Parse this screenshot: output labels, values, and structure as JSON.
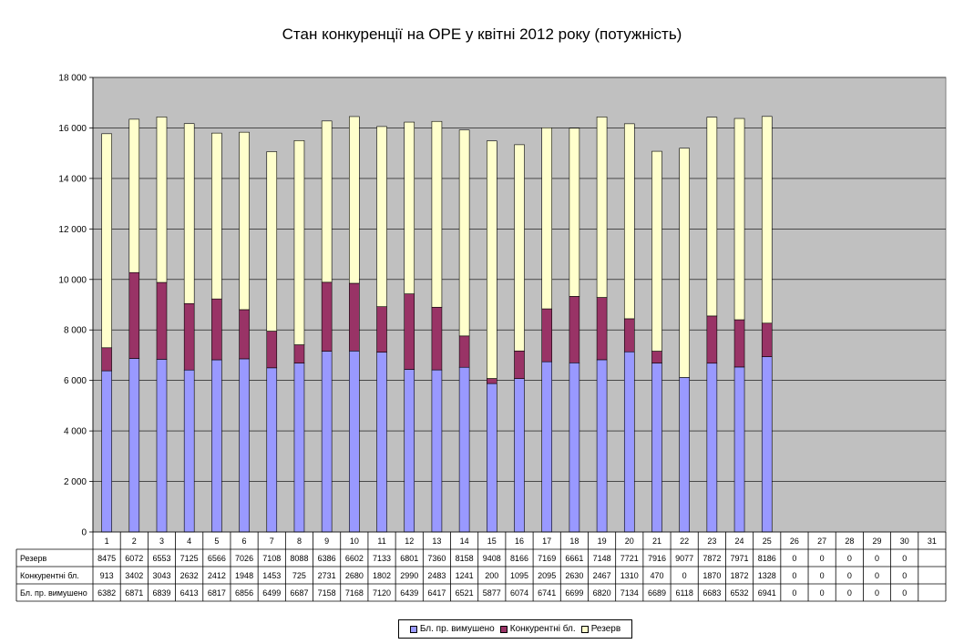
{
  "chart_data": {
    "type": "bar",
    "stacked": true,
    "title": "Стан конкуренції на ОРЕ  у квітні 2012 року (потужність)",
    "categories": [
      "1",
      "2",
      "3",
      "4",
      "5",
      "6",
      "7",
      "8",
      "9",
      "10",
      "11",
      "12",
      "13",
      "14",
      "15",
      "16",
      "17",
      "18",
      "19",
      "20",
      "21",
      "22",
      "23",
      "24",
      "25",
      "26",
      "27",
      "28",
      "29",
      "30",
      "31"
    ],
    "ylim": [
      0,
      18000
    ],
    "yticks": [
      "0",
      "2 000",
      "4 000",
      "6 000",
      "8 000",
      "10 000",
      "12 000",
      "14 000",
      "16 000",
      "18 000"
    ],
    "ytick_values": [
      0,
      2000,
      4000,
      6000,
      8000,
      10000,
      12000,
      14000,
      16000,
      18000
    ],
    "grid": true,
    "legend_position": "bottom",
    "series": [
      {
        "name": "Бл. пр. вимушено",
        "color": "#9999ff",
        "values": [
          6382,
          6871,
          6839,
          6413,
          6817,
          6856,
          6499,
          6687,
          7158,
          7168,
          7120,
          6439,
          6417,
          6521,
          5877,
          6074,
          6741,
          6699,
          6820,
          7134,
          6689,
          6118,
          6683,
          6532,
          6941,
          0,
          0,
          0,
          0,
          0,
          null
        ]
      },
      {
        "name": "Конкурентні бл.",
        "color": "#993366",
        "values": [
          913,
          3402,
          3043,
          2632,
          2412,
          1948,
          1453,
          725,
          2731,
          2680,
          1802,
          2990,
          2483,
          1241,
          200,
          1095,
          2095,
          2630,
          2467,
          1310,
          470,
          0,
          1870,
          1872,
          1328,
          0,
          0,
          0,
          0,
          0,
          null
        ]
      },
      {
        "name": "Резерв",
        "color": "#ffffcc",
        "values": [
          8475,
          6072,
          6553,
          7125,
          6566,
          7026,
          7108,
          8088,
          6386,
          6602,
          7133,
          6801,
          7360,
          8158,
          9408,
          8166,
          7169,
          6661,
          7148,
          7721,
          7916,
          9077,
          7872,
          7971,
          8186,
          0,
          0,
          0,
          0,
          0,
          null
        ]
      }
    ],
    "table_rows": [
      {
        "label": "Резерв",
        "series": 2
      },
      {
        "label": "Конкурентні бл.",
        "series": 1
      },
      {
        "label": "Бл. пр. вимушено",
        "series": 0
      }
    ]
  },
  "colors": {
    "plot_background": "#c0c0c0",
    "page_background": "#ffffff",
    "gridline": "#000000"
  }
}
